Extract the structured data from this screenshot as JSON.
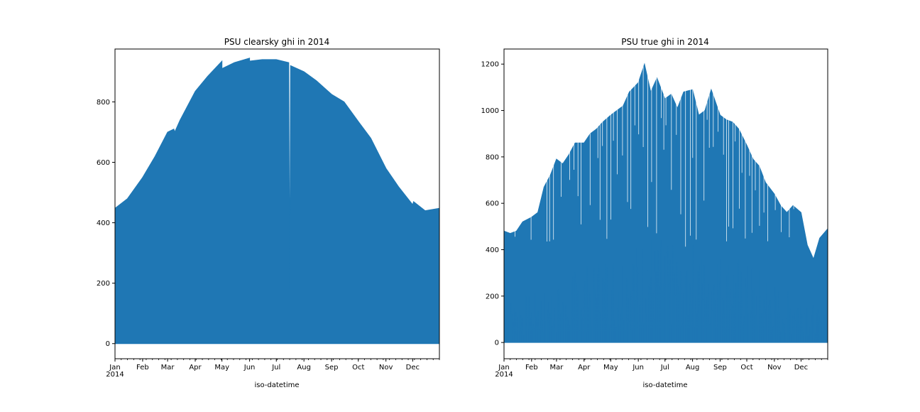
{
  "chart_data": [
    {
      "type": "area",
      "title": "PSU clearsky ghi in 2014",
      "xlabel": "iso-datetime",
      "ylabel": "",
      "color": "#1f77b4",
      "ylim": [
        -50,
        975
      ],
      "yticks": [
        0,
        200,
        400,
        600,
        800
      ],
      "xticks": [
        "Jan",
        "Feb",
        "Mar",
        "Apr",
        "May",
        "Jun",
        "Jul",
        "Aug",
        "Sep",
        "Oct",
        "Nov",
        "Dec"
      ],
      "year_label": "2014",
      "series": [
        {
          "x": [
            "2014-01-01",
            "2014-01-15",
            "2014-02-01",
            "2014-02-15",
            "2014-03-01",
            "2014-03-08",
            "2014-03-09",
            "2014-03-15",
            "2014-04-01",
            "2014-04-15",
            "2014-05-01",
            "2014-05-01",
            "2014-05-15",
            "2014-06-01",
            "2014-06-01",
            "2014-06-15",
            "2014-07-01",
            "2014-07-15",
            "2014-07-16",
            "2014-07-17",
            "2014-08-01",
            "2014-08-15",
            "2014-09-01",
            "2014-09-15",
            "2014-10-01",
            "2014-10-15",
            "2014-11-01",
            "2014-11-15",
            "2014-12-01",
            "2014-12-02",
            "2014-12-15",
            "2014-12-31"
          ],
          "y": [
            448,
            480,
            550,
            620,
            700,
            710,
            700,
            740,
            835,
            885,
            935,
            910,
            930,
            945,
            935,
            940,
            940,
            930,
            180,
            920,
            900,
            870,
            825,
            800,
            735,
            680,
            580,
            520,
            460,
            470,
            440,
            448
          ]
        }
      ]
    },
    {
      "type": "area",
      "title": "PSU true ghi in 2014",
      "xlabel": "iso-datetime",
      "ylabel": "",
      "color": "#1f77b4",
      "ylim": [
        -70,
        1265
      ],
      "yticks": [
        0,
        200,
        400,
        600,
        800,
        1000,
        1200
      ],
      "xticks": [
        "Jan",
        "Feb",
        "Mar",
        "Apr",
        "May",
        "Jun",
        "Jul",
        "Aug",
        "Sep",
        "Oct",
        "Nov",
        "Dec"
      ],
      "year_label": "2014",
      "series": [
        {
          "x": [
            "2014-01-01",
            "2014-01-08",
            "2014-01-15",
            "2014-01-22",
            "2014-02-01",
            "2014-02-08",
            "2014-02-15",
            "2014-02-22",
            "2014-03-01",
            "2014-03-08",
            "2014-03-15",
            "2014-03-22",
            "2014-04-01",
            "2014-04-08",
            "2014-04-15",
            "2014-04-22",
            "2014-05-01",
            "2014-05-08",
            "2014-05-15",
            "2014-05-22",
            "2014-06-01",
            "2014-06-08",
            "2014-06-15",
            "2014-06-22",
            "2014-07-01",
            "2014-07-08",
            "2014-07-15",
            "2014-07-22",
            "2014-08-01",
            "2014-08-08",
            "2014-08-15",
            "2014-08-22",
            "2014-09-01",
            "2014-09-08",
            "2014-09-15",
            "2014-09-22",
            "2014-10-01",
            "2014-10-08",
            "2014-10-15",
            "2014-10-22",
            "2014-11-01",
            "2014-11-08",
            "2014-11-15",
            "2014-11-22",
            "2014-12-01",
            "2014-12-08",
            "2014-12-15",
            "2014-12-22",
            "2014-12-31"
          ],
          "y": [
            480,
            470,
            480,
            520,
            540,
            560,
            670,
            720,
            790,
            770,
            810,
            860,
            860,
            900,
            920,
            950,
            980,
            1000,
            1020,
            1080,
            1120,
            1200,
            1080,
            1140,
            1050,
            1070,
            1010,
            1080,
            1090,
            980,
            1000,
            1090,
            980,
            960,
            950,
            920,
            850,
            790,
            760,
            690,
            640,
            590,
            560,
            590,
            560,
            420,
            360,
            450,
            490
          ]
        }
      ]
    }
  ]
}
